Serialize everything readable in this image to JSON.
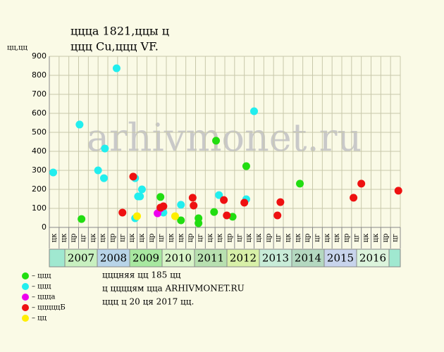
{
  "chart_data": {
    "type": "scatter",
    "title": "ццца 1821,ццы ц",
    "subtitle": "ццц Cu,ццц VF.",
    "y_label": "цц,цц",
    "watermark": "arhivmonet.ru",
    "notes": [
      "цццняя цц 185 цц",
      "ц ццццям цца ARHIVMONET.RU",
      "ццц ц 20 ця 2017 цц."
    ],
    "categories": [
      "цк",
      "цк",
      "цр",
      "цг",
      "цк",
      "цк",
      "цр",
      "цг",
      "цк",
      "цк",
      "цр",
      "цг",
      "цк",
      "цк",
      "цр",
      "цг",
      "цк",
      "цк",
      "цр",
      "цг",
      "цк",
      "цк",
      "цр",
      "цг",
      "цк",
      "цк",
      "цр",
      "цг",
      "цк",
      "цк",
      "цр",
      "цг",
      "цк",
      "цк",
      "цр",
      "цг"
    ],
    "years": [
      {
        "label": "2007",
        "color": "#c8f0c0"
      },
      {
        "label": "2008",
        "color": "#b8d4e8"
      },
      {
        "label": "2009",
        "color": "#a8e8a0"
      },
      {
        "label": "2010",
        "color": "#d8f4c8"
      },
      {
        "label": "2011",
        "color": "#b8e0b0"
      },
      {
        "label": "2012",
        "color": "#d8f0a8"
      },
      {
        "label": "2013",
        "color": "#c8ecd8"
      },
      {
        "label": "2014",
        "color": "#b4d8c0"
      },
      {
        "label": "2015",
        "color": "#c8d4ec"
      },
      {
        "label": "2016",
        "color": "#dcf4dc"
      }
    ],
    "lead_band_color": "#a0e8d0",
    "xlim": [
      0,
      36
    ],
    "ylim": [
      0,
      900
    ],
    "yticks": [
      0,
      100,
      200,
      300,
      400,
      500,
      600,
      700,
      800,
      900
    ],
    "grid": true,
    "series": [
      {
        "name": "– ццц",
        "color": "#22dd11",
        "x": [
          3.3,
          11.4,
          13.5,
          15.3,
          15.3,
          16.9,
          17.1,
          18.8,
          20.2,
          25.7
        ],
        "values": [
          44,
          160,
          37,
          48,
          22,
          81,
          456,
          56,
          322,
          230
        ]
      },
      {
        "name": "– ццц",
        "color": "#22eeee",
        "x": [
          0.4,
          3.1,
          5.0,
          5.6,
          5.7,
          6.9,
          8.8,
          8.8,
          9.1,
          9.3,
          9.5,
          11.7,
          13.5,
          17.4,
          20.2,
          21.0
        ],
        "values": [
          289,
          541,
          300,
          259,
          415,
          837,
          259,
          48,
          163,
          163,
          200,
          78,
          119,
          170,
          148,
          611
        ]
      },
      {
        "name": "– ццца",
        "color": "#ee00ee",
        "x": [
          11.1,
          11.4
        ],
        "values": [
          74,
          100
        ]
      },
      {
        "name": "– цццццБ",
        "color": "#ee1111",
        "x": [
          7.5,
          8.6,
          11.4,
          11.7,
          14.7,
          14.8,
          17.9,
          18.2,
          20.0,
          23.4,
          23.7,
          31.2,
          32.0,
          35.8
        ],
        "values": [
          78,
          267,
          104,
          111,
          156,
          115,
          144,
          63,
          130,
          63,
          133,
          156,
          230,
          193
        ]
      },
      {
        "name": "– цц",
        "color": "#ffee00",
        "x": [
          9.0,
          12.9
        ],
        "values": [
          59,
          59
        ]
      }
    ]
  }
}
